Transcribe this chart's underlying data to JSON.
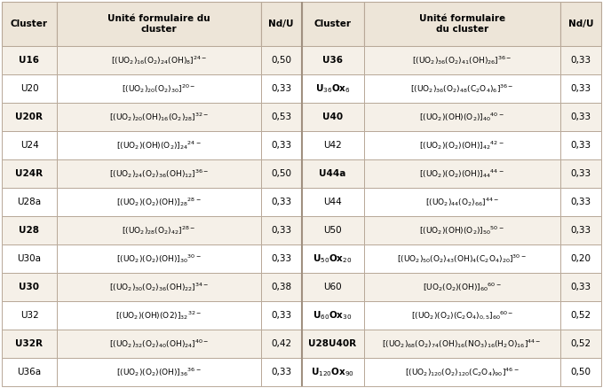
{
  "header_bg": "#ede5d8",
  "row_bg_odd": "#f5f0e8",
  "row_bg_even": "#ffffff",
  "border_color": "#b8a898",
  "text_color": "#1a1a1a",
  "left_headers": [
    "Cluster",
    "Unité formulaire du\ncluster",
    "Nd/U"
  ],
  "right_headers": [
    "Cluster",
    "Unité formulaire\ndu cluster",
    "Nd/U"
  ],
  "rows": [
    {
      "lc": "U16",
      "lb": true,
      "lf": "[(UO$_2$)$_{16}$(O$_2$)$_{24}$(OH)$_8$]$^{24-}$",
      "ln": "0,50",
      "rc": "U36",
      "rb": true,
      "rf": "[(UO$_2$)$_{36}$(O$_2$)$_{41}$(OH)$_{26}$]$^{36-}$",
      "rn": "0,33"
    },
    {
      "lc": "U20",
      "lb": false,
      "lf": "[(UO$_2$)$_{20}$(O$_2$)$_{30}$]$^{20-}$",
      "ln": "0,33",
      "rc": "U$_{36}$Ox$_6$",
      "rb": true,
      "rf": "[(UO$_2$)$_{36}$(O$_2$)$_{48}$(C$_2$O$_4$)$_6$]$^{36-}$",
      "rn": "0,33"
    },
    {
      "lc": "U20R",
      "lb": true,
      "lf": "[(UO$_2$)$_{20}$(OH)$_{16}$(O$_2$)$_{28}$]$^{32-}$",
      "ln": "0,53",
      "rc": "U40",
      "rb": true,
      "rf": "[(UO$_2$)(OH)(O$_2$)]$_{40}$$^{40-}$",
      "rn": "0,33"
    },
    {
      "lc": "U24",
      "lb": false,
      "lf": "[(UO$_2$)(OH)(O$_2$)]$_{24}$$^{24-}$",
      "ln": "0,33",
      "rc": "U42",
      "rb": false,
      "rf": "[(UO$_2$)(O$_2$)(OH)]$_{42}$$^{42-}$",
      "rn": "0,33"
    },
    {
      "lc": "U24R",
      "lb": true,
      "lf": "[(UO$_2$)$_{24}$(O$_2$)$_{36}$(OH)$_{12}$]$^{36-}$",
      "ln": "0,50",
      "rc": "U44a",
      "rb": true,
      "rf": "[(UO$_2$)(O$_2$)(OH)]$_{44}$$^{44-}$",
      "rn": "0,33"
    },
    {
      "lc": "U28a",
      "lb": false,
      "lf": "[(UO$_2$)(O$_2$)(OH)]$_{28}$$^{28-}$",
      "ln": "0,33",
      "rc": "U44",
      "rb": false,
      "rf": "[(UO$_2$)$_{44}$(O$_2$)$_{66}$]$^{44-}$",
      "rn": "0,33"
    },
    {
      "lc": "U28",
      "lb": true,
      "lf": "[(UO$_2$)$_{28}$(O$_2$)$_{42}$]$^{28-}$",
      "ln": "0,33",
      "rc": "U50",
      "rb": false,
      "rf": "[(UO$_2$)(OH)(O$_2$)]$_{50}$$^{50-}$",
      "rn": "0,33"
    },
    {
      "lc": "U30a",
      "lb": false,
      "lf": "[(UO$_2$)(O$_2$)(OH)]$_{30}$$^{30-}$",
      "ln": "0,33",
      "rc": "U$_{50}$Ox$_{20}$",
      "rb": true,
      "rf": "[(UO$_2$)$_{50}$(O$_2$)$_{43}$(OH)$_4$(C$_2$O$_4$)$_{20}$]$^{30-}$",
      "rn": "0,20"
    },
    {
      "lc": "U30",
      "lb": true,
      "lf": "[(UO$_2$)$_{30}$(O$_2$)$_{36}$(OH)$_{22}$]$^{34-}$",
      "ln": "0,38",
      "rc": "U60",
      "rb": false,
      "rf": "[UO$_2$(O$_2$)(OH)]$_{60}$$^{60-}$",
      "rn": "0,33"
    },
    {
      "lc": "U32",
      "lb": false,
      "lf": "[(UO$_2$)(OH)(O2)]$_{32}$$^{32-}$",
      "ln": "0,33",
      "rc": "U$_{60}$Ox$_{30}$",
      "rb": true,
      "rf": "[(UO$_2$)(O$_2$)(C$_2$O$_4$)$_{0,5}$]$_{60}$$^{60-}$",
      "rn": "0,52"
    },
    {
      "lc": "U32R",
      "lb": true,
      "lf": "[(UO$_2$)$_{32}$(O$_2$)$_{40}$(OH)$_{24}$]$^{40-}$",
      "ln": "0,42",
      "rc": "U28U40R",
      "rb": true,
      "rf": "[(UO$_2$)$_{68}$(O$_2$)$_{74}$(OH)$_{16}$(NO$_3$)$_{16}$(H$_2$O)$_{16}$]$^{44-}$",
      "rn": "0,52"
    },
    {
      "lc": "U36a",
      "lb": false,
      "lf": "[(UO$_2$)(O$_2$)(OH)]$_{36}$$^{36-}$",
      "ln": "0,33",
      "rc": "U$_{120}$Ox$_{90}$",
      "rb": true,
      "rf": "[(UO$_2$)$_{120}$(O$_2$)$_{120}$(C$_2$O$_4$)$_{90}$]$^{46-}$",
      "rn": "0,50"
    }
  ]
}
